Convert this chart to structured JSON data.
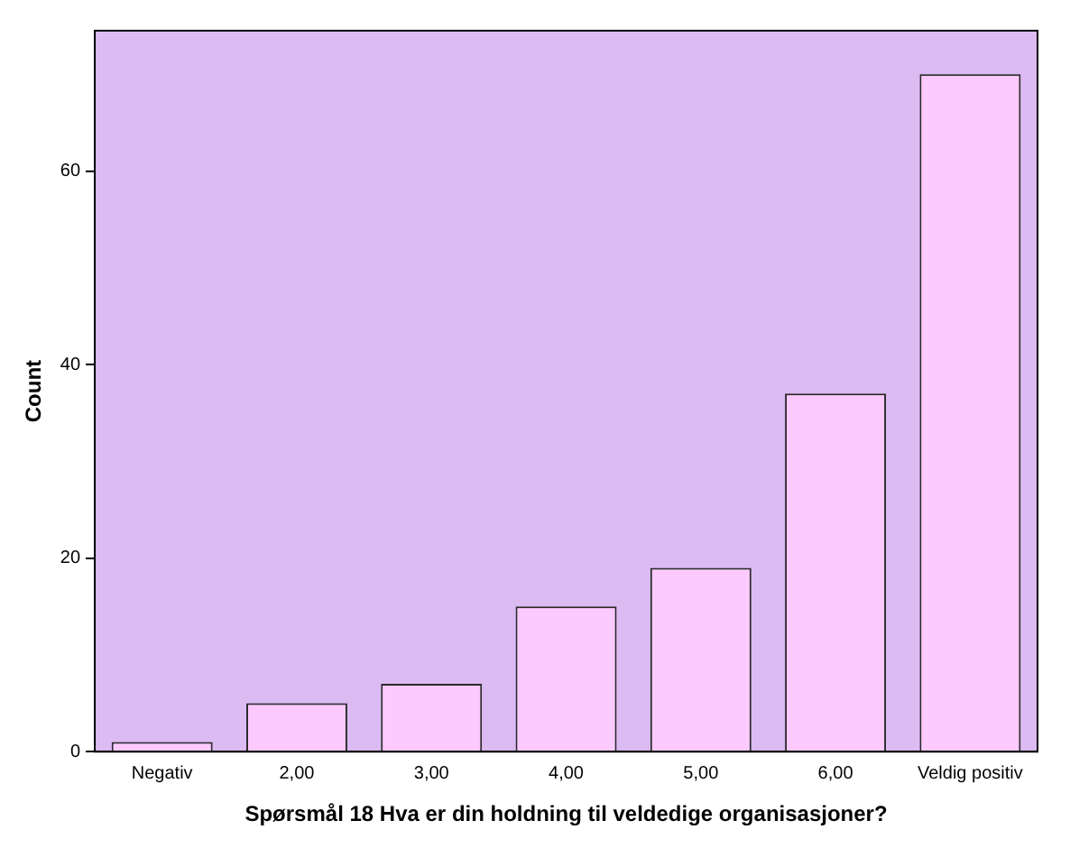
{
  "chart_data": {
    "type": "bar",
    "xlabel": "Spørsmål 18 Hva er din holdning til veldedige organisasjoner?",
    "ylabel": "Count",
    "categories": [
      "Negativ",
      "2,00",
      "3,00",
      "4,00",
      "5,00",
      "6,00",
      "Veldig positiv"
    ],
    "values": [
      1,
      5,
      7,
      15,
      19,
      37,
      70
    ],
    "color": "#fccafc",
    "ylim": [
      0,
      74.5
    ],
    "yticks": [
      0,
      20,
      40,
      60
    ],
    "grid": false,
    "legend": false
  }
}
